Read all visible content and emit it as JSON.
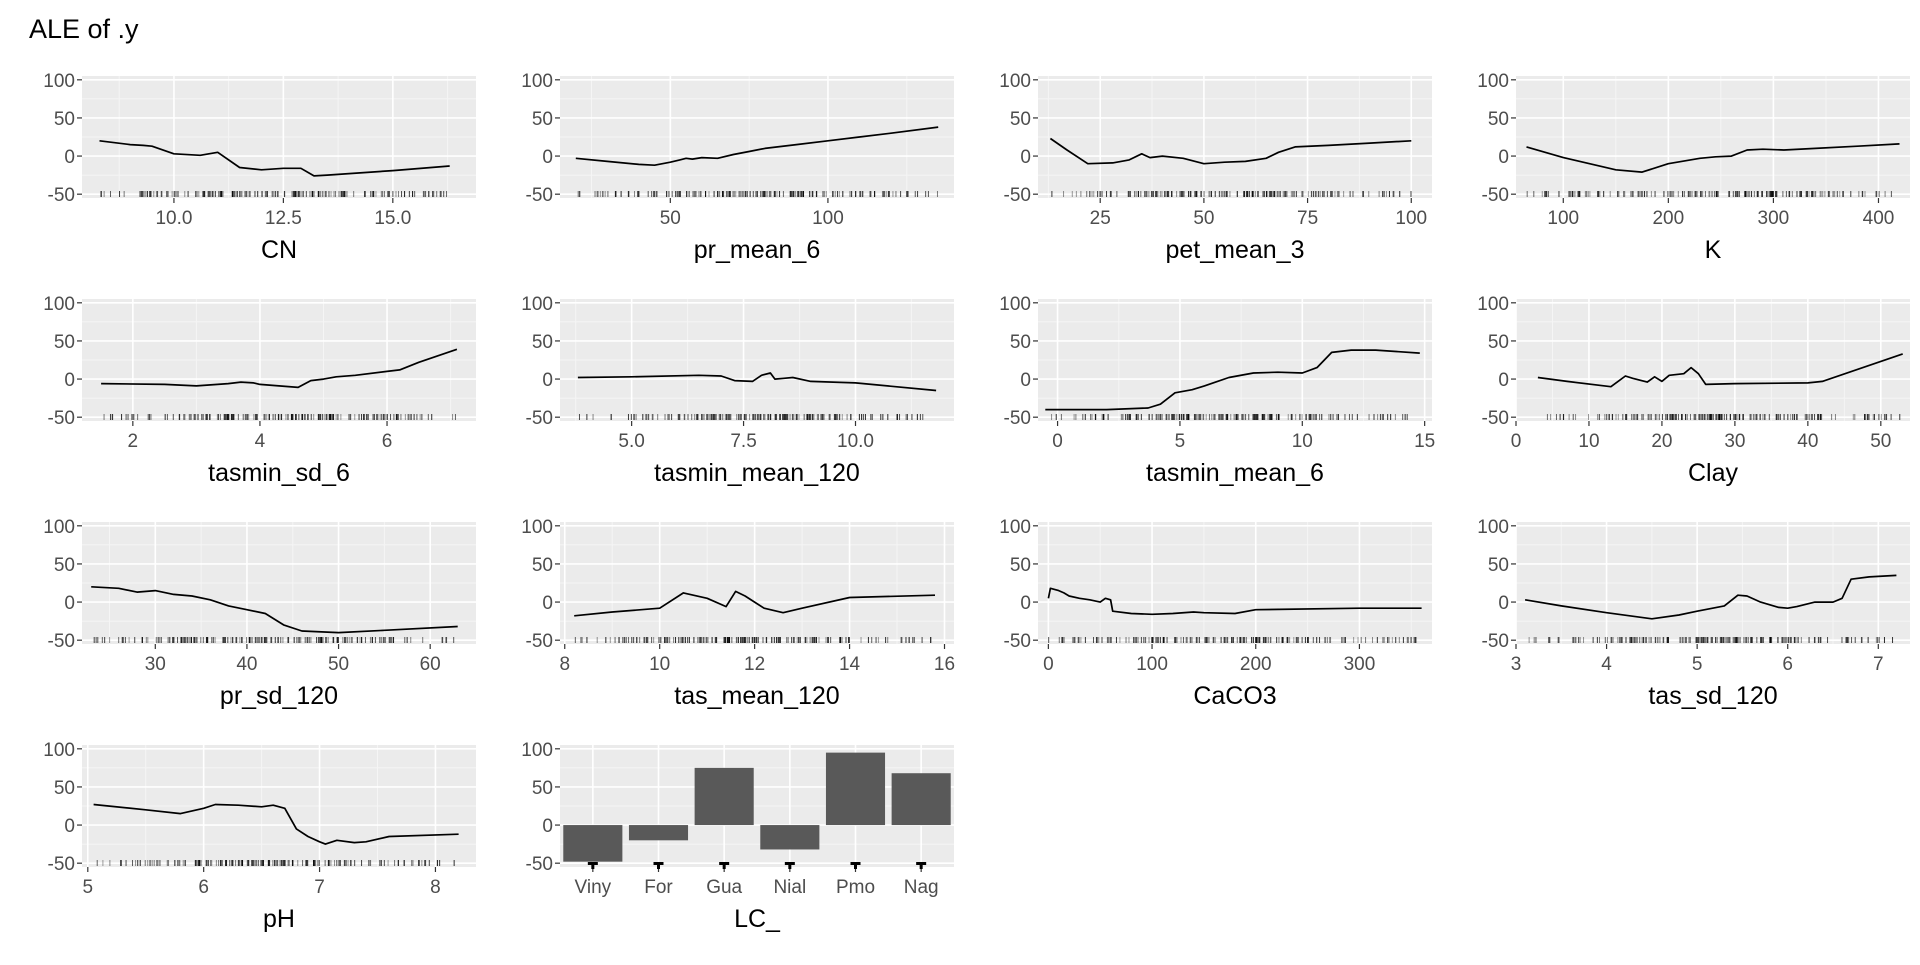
{
  "title": "ALE of .y",
  "colors": {
    "panel": "#ebebeb",
    "grid_major": "#ffffff",
    "grid_minor": "#f5f5f5",
    "line": "#000000",
    "bar": "#595959",
    "text": "#000000",
    "tick_text": "#4d4d4d"
  },
  "chart_data": [
    {
      "type": "line",
      "xlabel": "CN",
      "xlim": [
        7.9,
        16.9
      ],
      "xticks": [
        10.0,
        12.5,
        15.0
      ],
      "xtick_labels": [
        "10.0",
        "12.5",
        "15.0"
      ],
      "ylim": [
        -55,
        105
      ],
      "yticks": [
        -50,
        0,
        50,
        100
      ],
      "ytick_labels": [
        "-50",
        "0",
        "50",
        "100"
      ],
      "rug": true,
      "x": [
        8.3,
        9.0,
        9.3,
        9.5,
        10.0,
        10.6,
        11.0,
        11.5,
        12.0,
        12.5,
        12.9,
        13.2,
        13.5,
        14.0,
        15.0,
        16.3
      ],
      "y": [
        20,
        15,
        14,
        13,
        3,
        1,
        5,
        -15,
        -18,
        -16,
        -16,
        -26,
        -25,
        -23,
        -19,
        -13
      ]
    },
    {
      "type": "line",
      "xlabel": "pr_mean_6",
      "xlim": [
        15,
        140
      ],
      "xticks": [
        50,
        100
      ],
      "xtick_labels": [
        "50",
        "100"
      ],
      "ylim": [
        -55,
        105
      ],
      "yticks": [
        -50,
        0,
        50,
        100
      ],
      "ytick_labels": [
        "-50",
        "0",
        "50",
        "100"
      ],
      "rug": true,
      "x": [
        20,
        30,
        40,
        45,
        50,
        53,
        55,
        57,
        60,
        65,
        70,
        75,
        80,
        90,
        100,
        110,
        120,
        135
      ],
      "y": [
        -3,
        -7,
        -11,
        -12,
        -8,
        -5,
        -3,
        -4,
        -2,
        -3,
        2,
        6,
        10,
        15,
        20,
        25,
        30,
        38
      ]
    },
    {
      "type": "line",
      "xlabel": "pet_mean_3",
      "xlim": [
        10,
        105
      ],
      "xticks": [
        25,
        50,
        75,
        100
      ],
      "xtick_labels": [
        "25",
        "50",
        "75",
        "100"
      ],
      "ylim": [
        -55,
        105
      ],
      "yticks": [
        -50,
        0,
        50,
        100
      ],
      "ytick_labels": [
        "-50",
        "0",
        "50",
        "100"
      ],
      "rug": true,
      "x": [
        13,
        17,
        22,
        28,
        32,
        35,
        37,
        40,
        45,
        50,
        55,
        60,
        65,
        68,
        72,
        80,
        90,
        100
      ],
      "y": [
        23,
        8,
        -10,
        -9,
        -5,
        3,
        -2,
        0,
        -3,
        -10,
        -8,
        -7,
        -3,
        5,
        12,
        14,
        17,
        20
      ]
    },
    {
      "type": "line",
      "xlabel": "K",
      "xlim": [
        55,
        430
      ],
      "xticks": [
        100,
        200,
        300,
        400
      ],
      "xtick_labels": [
        "100",
        "200",
        "300",
        "400"
      ],
      "ylim": [
        -55,
        105
      ],
      "yticks": [
        -50,
        0,
        50,
        100
      ],
      "ytick_labels": [
        "-50",
        "0",
        "50",
        "100"
      ],
      "rug": true,
      "x": [
        65,
        100,
        150,
        175,
        200,
        230,
        245,
        260,
        275,
        290,
        310,
        340,
        380,
        420
      ],
      "y": [
        12,
        -2,
        -18,
        -21,
        -10,
        -3,
        -1,
        0,
        8,
        9,
        8,
        10,
        13,
        16
      ]
    },
    {
      "type": "line",
      "xlabel": "tasmin_sd_6",
      "xlim": [
        1.2,
        7.4
      ],
      "xticks": [
        2,
        4,
        6
      ],
      "xtick_labels": [
        "2",
        "4",
        "6"
      ],
      "ylim": [
        -55,
        105
      ],
      "yticks": [
        -50,
        0,
        50,
        100
      ],
      "ytick_labels": [
        "-50",
        "0",
        "50",
        "100"
      ],
      "rug": true,
      "x": [
        1.5,
        2.5,
        3.0,
        3.5,
        3.7,
        3.9,
        4.0,
        4.3,
        4.6,
        4.8,
        5.0,
        5.2,
        5.5,
        6.0,
        6.2,
        6.5,
        7.1
      ],
      "y": [
        -6,
        -7,
        -9,
        -6,
        -4,
        -5,
        -7,
        -9,
        -11,
        -2,
        0,
        3,
        5,
        10,
        12,
        22,
        39
      ]
    },
    {
      "type": "line",
      "xlabel": "tasmin_mean_120",
      "xlim": [
        3.4,
        12.2
      ],
      "xticks": [
        5.0,
        7.5,
        10.0
      ],
      "xtick_labels": [
        "5.0",
        "7.5",
        "10.0"
      ],
      "ylim": [
        -55,
        105
      ],
      "yticks": [
        -50,
        0,
        50,
        100
      ],
      "ytick_labels": [
        "-50",
        "0",
        "50",
        "100"
      ],
      "rug": true,
      "x": [
        3.8,
        5.0,
        6.5,
        7.0,
        7.3,
        7.7,
        7.9,
        8.1,
        8.2,
        8.4,
        8.6,
        9.0,
        10.0,
        11.8
      ],
      "y": [
        2,
        3,
        5,
        4,
        -2,
        -3,
        5,
        8,
        0,
        1,
        2,
        -3,
        -5,
        -15
      ]
    },
    {
      "type": "line",
      "xlabel": "tasmin_mean_6",
      "xlim": [
        -0.8,
        15.3
      ],
      "xticks": [
        0,
        5,
        10,
        15
      ],
      "xtick_labels": [
        "0",
        "5",
        "10",
        "15"
      ],
      "ylim": [
        -55,
        105
      ],
      "yticks": [
        -50,
        0,
        50,
        100
      ],
      "ytick_labels": [
        "-50",
        "0",
        "50",
        "100"
      ],
      "rug": true,
      "x": [
        -0.5,
        2.0,
        3.7,
        4.2,
        4.8,
        5.5,
        6.0,
        7.0,
        8.0,
        9.0,
        10.0,
        10.6,
        11.2,
        12.0,
        13.0,
        14.8
      ],
      "y": [
        -40,
        -40,
        -38,
        -33,
        -18,
        -14,
        -9,
        2,
        8,
        9,
        8,
        15,
        35,
        38,
        38,
        34
      ]
    },
    {
      "type": "line",
      "xlabel": "Clay",
      "xlim": [
        0,
        54
      ],
      "xticks": [
        0,
        10,
        20,
        30,
        40,
        50
      ],
      "xtick_labels": [
        "0",
        "10",
        "20",
        "30",
        "40",
        "50"
      ],
      "ylim": [
        -55,
        105
      ],
      "yticks": [
        -50,
        0,
        50,
        100
      ],
      "ytick_labels": [
        "-50",
        "0",
        "50",
        "100"
      ],
      "rug": true,
      "x": [
        3,
        7,
        13,
        15,
        16,
        18,
        19,
        20,
        21,
        23,
        24,
        25,
        26,
        30,
        40,
        42,
        53
      ],
      "y": [
        2,
        -3,
        -10,
        4,
        1,
        -4,
        3,
        -3,
        5,
        7,
        15,
        7,
        -7,
        -6,
        -5,
        -3,
        33
      ]
    },
    {
      "type": "line",
      "xlabel": "pr_sd_120",
      "xlim": [
        22,
        65
      ],
      "xticks": [
        30,
        40,
        50,
        60
      ],
      "xtick_labels": [
        "30",
        "40",
        "50",
        "60"
      ],
      "ylim": [
        -55,
        105
      ],
      "yticks": [
        -50,
        0,
        50,
        100
      ],
      "ytick_labels": [
        "-50",
        "0",
        "50",
        "100"
      ],
      "rug": true,
      "x": [
        23,
        26,
        28,
        30,
        32,
        34,
        36,
        38,
        40,
        42,
        44,
        46,
        50,
        55,
        63
      ],
      "y": [
        20,
        18,
        13,
        15,
        10,
        8,
        3,
        -5,
        -10,
        -15,
        -30,
        -38,
        -40,
        -37,
        -32
      ]
    },
    {
      "type": "line",
      "xlabel": "tas_mean_120",
      "xlim": [
        7.9,
        16.2
      ],
      "xticks": [
        8,
        10,
        12,
        14,
        16
      ],
      "xtick_labels": [
        "8",
        "10",
        "12",
        "14",
        "16"
      ],
      "ylim": [
        -55,
        105
      ],
      "yticks": [
        -50,
        0,
        50,
        100
      ],
      "ytick_labels": [
        "-50",
        "0",
        "50",
        "100"
      ],
      "rug": true,
      "x": [
        8.2,
        9.0,
        10.0,
        10.5,
        11.0,
        11.4,
        11.6,
        11.8,
        12.0,
        12.2,
        12.6,
        13.0,
        14.0,
        15.8
      ],
      "y": [
        -18,
        -13,
        -8,
        12,
        5,
        -6,
        14,
        8,
        0,
        -8,
        -14,
        -8,
        6,
        9
      ]
    },
    {
      "type": "line",
      "xlabel": "CaCO3",
      "xlim": [
        -10,
        370
      ],
      "xticks": [
        0,
        100,
        200,
        300
      ],
      "xtick_labels": [
        "0",
        "100",
        "200",
        "300"
      ],
      "ylim": [
        -55,
        105
      ],
      "yticks": [
        -50,
        0,
        50,
        100
      ],
      "ytick_labels": [
        "-50",
        "0",
        "50",
        "100"
      ],
      "rug": true,
      "x": [
        0,
        2,
        10,
        15,
        20,
        30,
        40,
        50,
        55,
        60,
        62,
        80,
        100,
        120,
        140,
        150,
        180,
        200,
        300,
        360
      ],
      "y": [
        5,
        18,
        15,
        12,
        8,
        5,
        3,
        0,
        5,
        3,
        -12,
        -15,
        -16,
        -15,
        -13,
        -14,
        -15,
        -10,
        -8,
        -8
      ]
    },
    {
      "type": "line",
      "xlabel": "tas_sd_120",
      "xlim": [
        3.0,
        7.35
      ],
      "xticks": [
        3,
        4,
        5,
        6,
        7
      ],
      "xtick_labels": [
        "3",
        "4",
        "5",
        "6",
        "7"
      ],
      "ylim": [
        -55,
        105
      ],
      "yticks": [
        -50,
        0,
        50,
        100
      ],
      "ytick_labels": [
        "-50",
        "0",
        "50",
        "100"
      ],
      "rug": true,
      "x": [
        3.1,
        3.5,
        4.0,
        4.5,
        4.8,
        5.0,
        5.3,
        5.45,
        5.55,
        5.7,
        5.9,
        6.0,
        6.1,
        6.3,
        6.5,
        6.6,
        6.7,
        6.9,
        7.2
      ],
      "y": [
        3,
        -5,
        -14,
        -22,
        -17,
        -12,
        -5,
        9,
        8,
        0,
        -7,
        -8,
        -6,
        0,
        0,
        5,
        30,
        33,
        35
      ]
    },
    {
      "type": "line",
      "xlabel": "pH",
      "xlim": [
        4.95,
        8.35
      ],
      "xticks": [
        5,
        6,
        7,
        8
      ],
      "xtick_labels": [
        "5",
        "6",
        "7",
        "8"
      ],
      "ylim": [
        -55,
        105
      ],
      "yticks": [
        -50,
        0,
        50,
        100
      ],
      "ytick_labels": [
        "-50",
        "0",
        "50",
        "100"
      ],
      "rug": true,
      "x": [
        5.05,
        5.5,
        5.8,
        6.0,
        6.1,
        6.3,
        6.5,
        6.6,
        6.7,
        6.8,
        6.9,
        7.0,
        7.05,
        7.15,
        7.3,
        7.4,
        7.6,
        8.2
      ],
      "y": [
        27,
        20,
        15,
        22,
        27,
        26,
        24,
        26,
        22,
        -5,
        -15,
        -22,
        -25,
        -20,
        -23,
        -22,
        -15,
        -12
      ]
    },
    {
      "type": "bar",
      "xlabel": "LC_",
      "categories": [
        "Viny",
        "For",
        "Gua",
        "Nial",
        "Pmo",
        "Nag"
      ],
      "values": [
        -48,
        -20,
        75,
        -32,
        95,
        68
      ],
      "ylim": [
        -55,
        105
      ],
      "yticks": [
        -50,
        0,
        50,
        100
      ],
      "ytick_labels": [
        "-50",
        "0",
        "50",
        "100"
      ]
    }
  ]
}
